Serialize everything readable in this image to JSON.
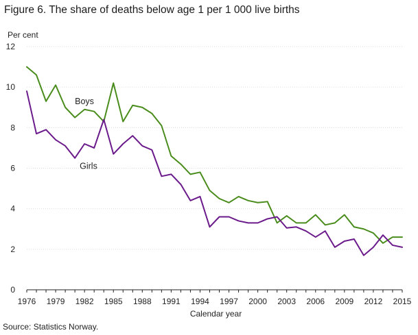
{
  "figure": {
    "title": "Figure 6. The share of deaths below age 1 per 1 000 live births",
    "source": "Source: Statistics Norway."
  },
  "chart_data": {
    "type": "line",
    "title": "Figure 6. The share of deaths below age 1 per 1 000 live births",
    "ylabel": "Per cent",
    "xlabel": "Calendar year",
    "xlim": [
      1976,
      2015
    ],
    "ylim": [
      0,
      12
    ],
    "y_ticks": [
      0,
      2,
      4,
      6,
      8,
      10,
      12
    ],
    "x_tick_labels": [
      "1976",
      "1979",
      "1982",
      "1985",
      "1988",
      "1991",
      "1994",
      "1997",
      "2000",
      "2003",
      "2006",
      "2009",
      "2012",
      "2015"
    ],
    "grid": "horizontal-dotted",
    "x": [
      1976,
      1977,
      1978,
      1979,
      1980,
      1981,
      1982,
      1983,
      1984,
      1985,
      1986,
      1987,
      1988,
      1989,
      1990,
      1991,
      1992,
      1993,
      1994,
      1995,
      1996,
      1997,
      1998,
      1999,
      2000,
      2001,
      2002,
      2003,
      2004,
      2005,
      2006,
      2007,
      2008,
      2009,
      2010,
      2011,
      2012,
      2013,
      2014,
      2015
    ],
    "series": [
      {
        "name": "Boys",
        "color": "#4a8c1c",
        "label_at": [
          1981,
          9.3
        ],
        "values": [
          11.0,
          10.6,
          9.3,
          10.1,
          9.0,
          8.5,
          8.9,
          8.8,
          8.3,
          10.2,
          8.3,
          9.1,
          9.0,
          8.7,
          8.1,
          6.6,
          6.2,
          5.7,
          5.8,
          4.9,
          4.5,
          4.3,
          4.6,
          4.4,
          4.3,
          4.35,
          3.3,
          3.65,
          3.3,
          3.3,
          3.7,
          3.2,
          3.3,
          3.7,
          3.1,
          3.0,
          2.8,
          2.3,
          2.6,
          2.6
        ]
      },
      {
        "name": "Girls",
        "color": "#6a1a8a",
        "label_at": [
          1981.5,
          6.1
        ],
        "values": [
          9.8,
          7.7,
          7.9,
          7.4,
          7.1,
          6.5,
          7.2,
          7.0,
          8.4,
          6.7,
          7.2,
          7.6,
          7.1,
          6.9,
          5.6,
          5.7,
          5.2,
          4.4,
          4.6,
          3.1,
          3.6,
          3.6,
          3.4,
          3.3,
          3.3,
          3.5,
          3.6,
          3.05,
          3.1,
          2.9,
          2.6,
          2.9,
          2.1,
          2.4,
          2.5,
          1.7,
          2.1,
          2.7,
          2.2,
          2.1
        ]
      }
    ]
  }
}
